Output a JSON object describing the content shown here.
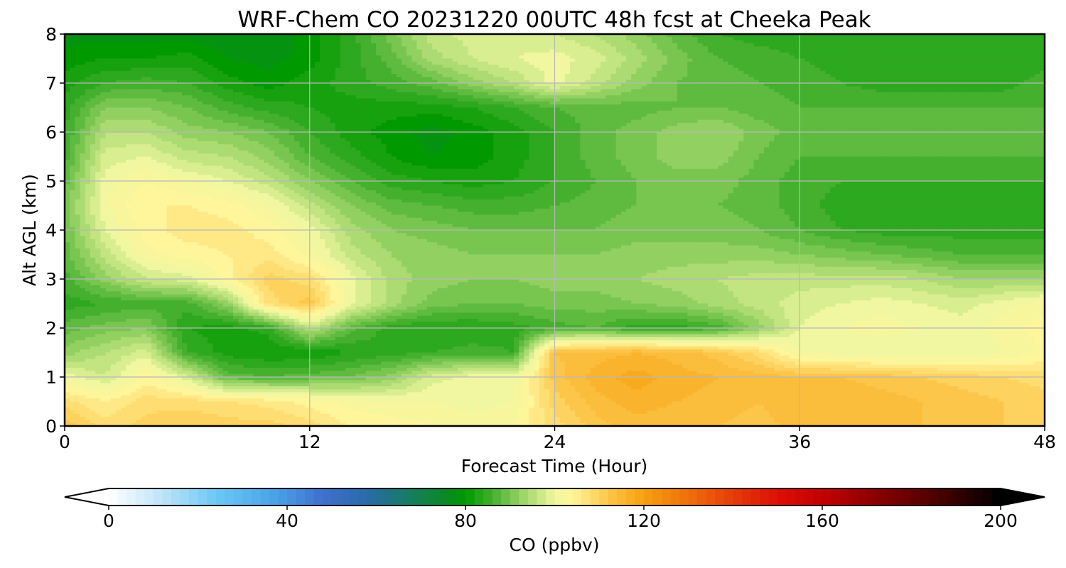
{
  "chart_data": {
    "type": "heatmap",
    "title": "WRF-Chem CO  20231220 00UTC 48h fcst at Cheeka Peak",
    "xlabel": "Forecast Time (Hour)",
    "ylabel": "Alt AGL (km)",
    "xlim": [
      0,
      48
    ],
    "ylim": [
      0,
      8
    ],
    "x_ticks": [
      "0",
      "12",
      "24",
      "36",
      "48"
    ],
    "y_ticks": [
      "0",
      "1",
      "2",
      "3",
      "4",
      "5",
      "6",
      "7",
      "8"
    ],
    "grid": true,
    "x": [
      0,
      2,
      4,
      6,
      8,
      10,
      12,
      14,
      16,
      18,
      20,
      22,
      24,
      26,
      28,
      30,
      32,
      34,
      36,
      38,
      40,
      42,
      44,
      46,
      48
    ],
    "y": [
      0,
      0.5,
      1,
      1.5,
      2,
      2.5,
      3,
      3.5,
      4,
      4.5,
      5,
      5.5,
      6,
      6.5,
      7,
      7.5,
      8
    ],
    "z": [
      [
        112,
        108,
        110,
        111,
        110,
        110,
        108,
        105,
        104,
        103,
        102,
        103,
        108,
        112,
        114,
        114,
        113,
        112,
        114,
        115,
        114,
        113,
        112,
        111,
        110
      ],
      [
        108,
        105,
        108,
        108,
        107,
        106,
        104,
        102,
        101,
        101,
        100,
        101,
        110,
        114,
        116,
        115,
        114,
        113,
        115,
        115,
        114,
        113,
        112,
        111,
        110
      ],
      [
        100,
        97,
        104,
        98,
        88,
        87,
        88,
        89,
        92,
        98,
        100,
        100,
        112,
        116,
        118,
        116,
        115,
        114,
        113,
        113,
        112,
        111,
        110,
        109,
        108
      ],
      [
        92,
        95,
        98,
        85,
        82,
        81,
        81,
        83,
        84,
        85,
        86,
        85,
        113,
        114,
        115,
        114,
        112,
        108,
        101,
        100,
        99,
        99,
        99,
        101,
        103
      ],
      [
        88,
        90,
        91,
        83,
        82,
        84,
        96,
        88,
        84,
        83,
        83,
        84,
        86,
        87,
        84,
        84,
        86,
        92,
        99,
        101,
        102,
        101,
        100,
        102,
        104
      ],
      [
        84,
        85,
        86,
        86,
        92,
        108,
        112,
        100,
        94,
        90,
        89,
        89,
        90,
        90,
        91,
        92,
        94,
        96,
        98,
        99,
        100,
        99,
        98,
        100,
        102
      ],
      [
        86,
        92,
        97,
        98,
        104,
        110,
        108,
        100,
        94,
        92,
        91,
        91,
        92,
        92,
        93,
        94,
        95,
        96,
        96,
        96,
        96,
        95,
        93,
        93,
        93
      ],
      [
        88,
        96,
        102,
        104,
        105,
        106,
        102,
        96,
        93,
        92,
        91,
        91,
        91,
        91,
        92,
        92,
        92,
        92,
        91,
        90,
        89,
        88,
        87,
        87,
        87
      ],
      [
        89,
        99,
        104,
        106,
        106,
        104,
        100,
        94,
        91,
        90,
        89,
        89,
        89,
        89,
        90,
        90,
        90,
        89,
        87,
        85,
        84,
        84,
        84,
        84,
        84
      ],
      [
        90,
        101,
        105,
        105,
        104,
        101,
        96,
        91,
        88,
        87,
        86,
        86,
        87,
        88,
        89,
        89,
        89,
        88,
        86,
        84,
        83,
        83,
        83,
        83,
        83
      ],
      [
        88,
        100,
        103,
        101,
        99,
        96,
        91,
        87,
        84,
        83,
        82,
        83,
        85,
        87,
        89,
        90,
        90,
        88,
        86,
        85,
        85,
        85,
        85,
        85,
        85
      ],
      [
        86,
        98,
        99,
        96,
        95,
        92,
        87,
        84,
        81,
        79,
        80,
        82,
        85,
        88,
        90,
        92,
        92,
        89,
        87,
        87,
        87,
        87,
        87,
        87,
        87
      ],
      [
        85,
        95,
        95,
        92,
        91,
        89,
        85,
        82,
        80,
        78,
        80,
        82,
        85,
        88,
        90,
        92,
        93,
        90,
        88,
        88,
        88,
        88,
        88,
        88,
        88
      ],
      [
        84,
        91,
        91,
        89,
        86,
        84,
        83,
        82,
        82,
        82,
        83,
        85,
        87,
        88,
        88,
        89,
        89,
        88,
        87,
        87,
        87,
        87,
        87,
        87,
        87
      ],
      [
        82,
        85,
        86,
        85,
        82,
        80,
        82,
        84,
        86,
        88,
        92,
        95,
        100,
        96,
        92,
        89,
        88,
        87,
        86,
        85,
        84,
        84,
        84,
        84,
        86
      ],
      [
        80,
        81,
        81,
        82,
        79,
        78,
        80,
        84,
        88,
        94,
        97,
        99,
        100,
        98,
        94,
        90,
        87,
        86,
        85,
        84,
        83,
        83,
        83,
        83,
        84
      ],
      [
        78,
        78,
        78,
        78,
        77,
        77,
        80,
        84,
        90,
        96,
        98,
        98,
        97,
        95,
        92,
        88,
        85,
        84,
        84,
        83,
        83,
        83,
        83,
        83,
        83
      ]
    ],
    "colorbar": {
      "label": "CO  (ppbv)",
      "min": 0,
      "max": 200,
      "extend": "both",
      "ticks": [
        0,
        40,
        80,
        120,
        160,
        200
      ],
      "tick_labels": [
        "0",
        "40",
        "80",
        "120",
        "160",
        "200"
      ],
      "stops": [
        {
          "v": 0,
          "c": "#ffffff"
        },
        {
          "v": 12,
          "c": "#bfe3f8"
        },
        {
          "v": 24,
          "c": "#6cc8f6"
        },
        {
          "v": 38,
          "c": "#4a9fe6"
        },
        {
          "v": 48,
          "c": "#3f6fcf"
        },
        {
          "v": 58,
          "c": "#2a6aa8"
        },
        {
          "v": 66,
          "c": "#1a7a6a"
        },
        {
          "v": 76,
          "c": "#0a8a20"
        },
        {
          "v": 80,
          "c": "#009900"
        },
        {
          "v": 86,
          "c": "#44b02e"
        },
        {
          "v": 93,
          "c": "#9fd66a"
        },
        {
          "v": 100,
          "c": "#f0f7a0"
        },
        {
          "v": 104,
          "c": "#fff59a"
        },
        {
          "v": 112,
          "c": "#fcc64a"
        },
        {
          "v": 120,
          "c": "#f7a010"
        },
        {
          "v": 130,
          "c": "#ef6f0c"
        },
        {
          "v": 140,
          "c": "#e63c0a"
        },
        {
          "v": 150,
          "c": "#dc0f06"
        },
        {
          "v": 160,
          "c": "#c40000"
        },
        {
          "v": 172,
          "c": "#8a0000"
        },
        {
          "v": 186,
          "c": "#4a0000"
        },
        {
          "v": 200,
          "c": "#000000"
        }
      ]
    }
  }
}
